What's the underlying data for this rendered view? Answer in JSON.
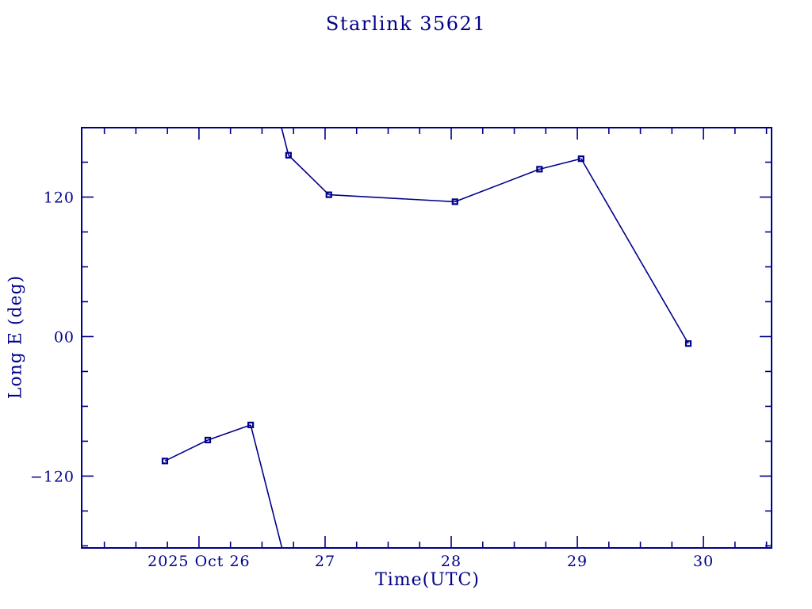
{
  "page": {
    "background": "#ffffff"
  },
  "chart_data": {
    "type": "line",
    "title": "Starlink 35621",
    "xlabel": "Time(UTC)",
    "ylabel": "Long E (deg)",
    "color": "#00008B",
    "grid": false,
    "legend": null,
    "xlim": [
      25.07,
      30.54
    ],
    "ylim": [
      -181.8,
      179.7
    ],
    "x_unit_context": "day of month shown in tick labels",
    "x_major_ticks": [
      26,
      27,
      28,
      29,
      30
    ],
    "x_major_tick_labels": [
      "2025 Oct 26",
      "27",
      "28",
      "29",
      "30"
    ],
    "x_minor_tick_step": 0.25,
    "y_major_ticks": [
      120,
      0,
      -120
    ],
    "y_major_tick_labels": [
      "120",
      "00",
      "−120"
    ],
    "y_minor_tick_step": 30,
    "wrap_degrees": 360,
    "series": [
      {
        "name": "Long E",
        "marker": "open-square",
        "x": [
          25.73,
          26.07,
          26.41,
          26.71,
          27.03,
          28.03,
          28.7,
          29.03,
          29.88
        ],
        "y": [
          -107,
          -89,
          -76,
          156,
          122,
          116,
          144,
          153,
          -6
        ]
      }
    ]
  }
}
